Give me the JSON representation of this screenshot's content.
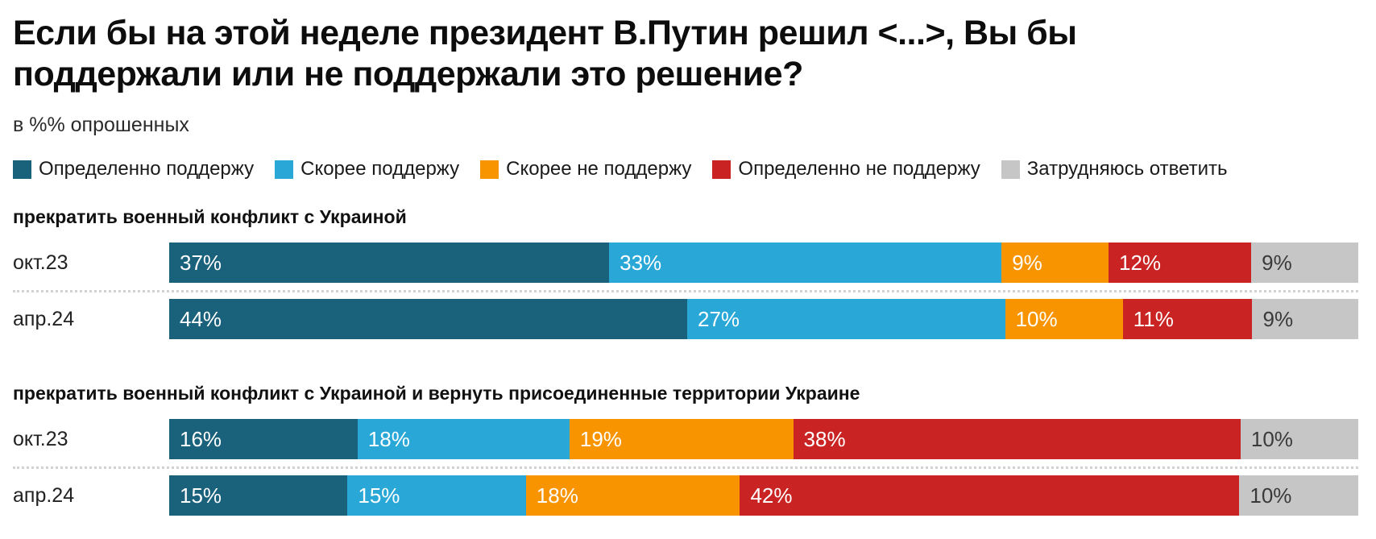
{
  "title": "Если бы на этой неделе президент В.Путин решил <...>, Вы бы поддержали или не поддержали это решение?",
  "subtitle": "в %% опрошенных",
  "legend": [
    {
      "label": "Определенно поддержу",
      "color": "#1A617C",
      "text_on_color": "#ffffff"
    },
    {
      "label": "Скорее поддержу",
      "color": "#29A8D8",
      "text_on_color": "#ffffff"
    },
    {
      "label": "Скорее не поддержу",
      "color": "#F79400",
      "text_on_color": "#ffffff"
    },
    {
      "label": "Определенно не поддержу",
      "color": "#C92423",
      "text_on_color": "#ffffff"
    },
    {
      "label": "Затрудняюсь ответить",
      "color": "#C6C6C6",
      "text_on_color": "#3a3a3a"
    }
  ],
  "chart_data": {
    "type": "bar",
    "variant": "horizontal-stacked",
    "unit": "%",
    "value_suffix": "%",
    "xlim": [
      0,
      100
    ],
    "legend_position": "top",
    "series_labels": [
      "Определенно поддержу",
      "Скорее поддержу",
      "Скорее не поддержу",
      "Определенно не поддержу",
      "Затрудняюсь ответить"
    ],
    "groups": [
      {
        "question": "прекратить военный конфликт с Украиной",
        "rows": [
          {
            "label": "окт.23",
            "values": [
              37,
              33,
              9,
              12,
              9
            ]
          },
          {
            "label": "апр.24",
            "values": [
              44,
              27,
              10,
              11,
              9
            ]
          }
        ]
      },
      {
        "question": "прекратить военный конфликт с Украиной и вернуть присоединенные территории Украине",
        "rows": [
          {
            "label": "окт.23",
            "values": [
              16,
              18,
              19,
              38,
              10
            ]
          },
          {
            "label": "апр.24",
            "values": [
              15,
              15,
              18,
              42,
              10
            ]
          }
        ]
      }
    ]
  }
}
